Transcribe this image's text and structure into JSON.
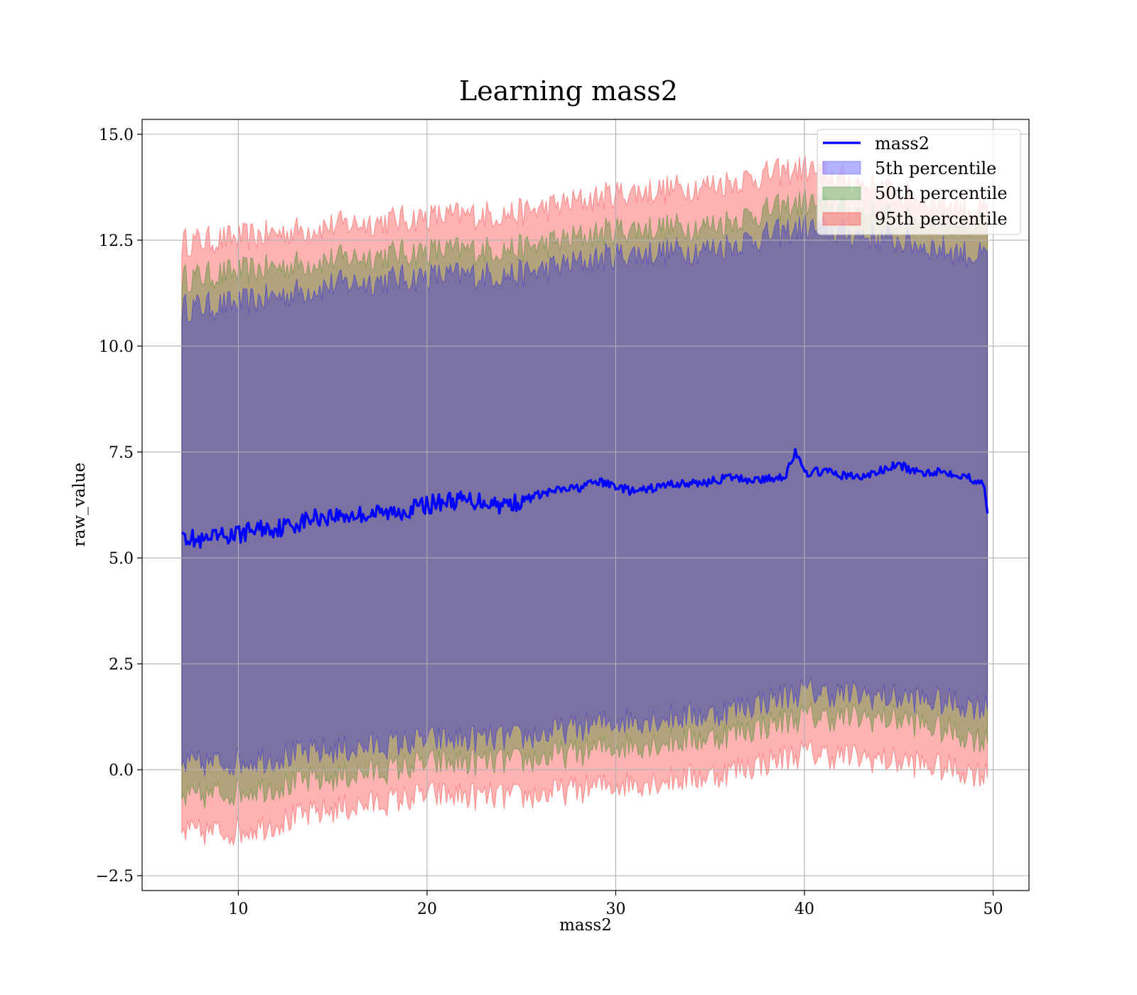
{
  "chart_data": {
    "type": "line",
    "title": "Learning mass2",
    "xlabel": "mass2",
    "ylabel": "raw_value",
    "xlim": [
      4.9,
      51.9
    ],
    "ylim": [
      -2.85,
      15.35
    ],
    "xticks": [
      10,
      20,
      30,
      40,
      50
    ],
    "xtick_labels": [
      "10",
      "20",
      "30",
      "40",
      "50"
    ],
    "yticks": [
      -2.5,
      0.0,
      2.5,
      5.0,
      7.5,
      10.0,
      12.5,
      15.0
    ],
    "ytick_labels": [
      "−2.5",
      "0.0",
      "2.5",
      "5.0",
      "7.5",
      "10.0",
      "12.5",
      "15.0"
    ],
    "grid": true,
    "legend_position": "top-right",
    "x_range": [
      7.0,
      49.7
    ],
    "mean_series": {
      "name": "mass2",
      "color": "#0000ff",
      "x": [
        7.0,
        8.0,
        9.0,
        10.0,
        11.0,
        12.0,
        13.0,
        14.0,
        15.0,
        16.0,
        17.0,
        18.0,
        19.0,
        20.0,
        21.0,
        22.0,
        23.0,
        24.0,
        25.0,
        26.0,
        27.0,
        28.0,
        29.0,
        30.0,
        31.0,
        32.0,
        33.0,
        34.0,
        35.0,
        36.0,
        37.0,
        38.0,
        39.0,
        39.5,
        40.0,
        41.0,
        42.0,
        43.0,
        44.0,
        45.0,
        46.0,
        47.0,
        48.0,
        49.0,
        49.5,
        49.7
      ],
      "y": [
        5.6,
        5.35,
        5.5,
        5.55,
        5.7,
        5.7,
        5.8,
        5.95,
        6.0,
        6.0,
        6.05,
        6.05,
        6.15,
        6.25,
        6.35,
        6.35,
        6.35,
        6.25,
        6.35,
        6.5,
        6.6,
        6.65,
        6.8,
        6.7,
        6.55,
        6.65,
        6.75,
        6.75,
        6.8,
        6.9,
        6.85,
        6.85,
        6.95,
        7.5,
        7.0,
        7.05,
        6.95,
        6.9,
        7.05,
        7.2,
        7.0,
        7.05,
        7.0,
        6.85,
        6.8,
        6.05
      ]
    },
    "series": [
      {
        "name": "5th percentile",
        "color": "#0000ff",
        "x": [
          7.0,
          10.0,
          15.0,
          20.0,
          25.0,
          30.0,
          35.0,
          40.0,
          45.0,
          49.5
        ],
        "lower": [
          0.1,
          0.2,
          0.45,
          0.7,
          0.75,
          1.15,
          1.3,
          1.85,
          1.7,
          1.5
        ],
        "upper": [
          10.9,
          11.0,
          11.45,
          11.65,
          11.7,
          12.15,
          12.3,
          12.8,
          12.5,
          12.1
        ]
      },
      {
        "name": "50th percentile",
        "color": "#008000",
        "x": [
          7.0,
          10.0,
          15.0,
          20.0,
          25.0,
          30.0,
          35.0,
          40.0,
          45.0,
          49.5
        ],
        "lower": [
          -0.7,
          -0.5,
          -0.2,
          0.15,
          0.2,
          0.55,
          0.75,
          1.25,
          1.2,
          0.7
        ],
        "upper": [
          11.6,
          11.75,
          12.05,
          12.25,
          12.3,
          12.75,
          12.85,
          13.4,
          13.0,
          12.9
        ]
      },
      {
        "name": "95th percentile",
        "color": "#ff0000",
        "x": [
          7.0,
          10.0,
          15.0,
          20.0,
          25.0,
          30.0,
          35.0,
          40.0,
          45.0,
          49.5
        ],
        "lower": [
          -1.5,
          -1.45,
          -0.95,
          -0.6,
          -0.65,
          -0.35,
          -0.15,
          0.4,
          0.2,
          -0.1
        ],
        "upper": [
          12.45,
          12.55,
          12.85,
          13.05,
          13.15,
          13.6,
          13.8,
          14.2,
          13.6,
          13.2
        ]
      }
    ]
  }
}
